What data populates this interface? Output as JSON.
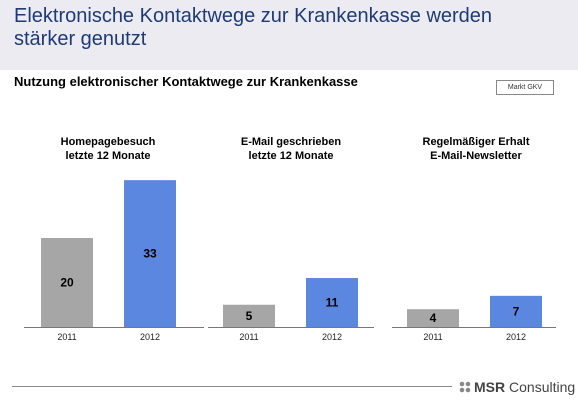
{
  "title": "Elektronische Kontaktwege zur Krankenkasse werden stärker genutzt",
  "subtitle": "Nutzung elektronischer Kontaktwege zur Krankenkasse",
  "tag": "Markt GKV",
  "logo": {
    "brand": "MSR",
    "suffix": " Consulting",
    "icon": "msr-logo-icon"
  },
  "colors": {
    "y2011": "#a6a6a6",
    "y2012": "#5b87e0",
    "header": "#ebebf1",
    "title": "#1f3a78"
  },
  "chart_data": [
    {
      "type": "bar",
      "title": "Homepagebesuch\nletzte 12 Monate",
      "categories": [
        "2011",
        "2012"
      ],
      "values": [
        20,
        33
      ]
    },
    {
      "type": "bar",
      "title": "E-Mail geschrieben\nletzte 12 Monate",
      "categories": [
        "2011",
        "2012"
      ],
      "values": [
        5,
        11
      ]
    },
    {
      "type": "bar",
      "title": "Regelmäßiger Erhalt\nE-Mail-Newsletter",
      "categories": [
        "2011",
        "2012"
      ],
      "values": [
        4,
        7
      ]
    }
  ]
}
